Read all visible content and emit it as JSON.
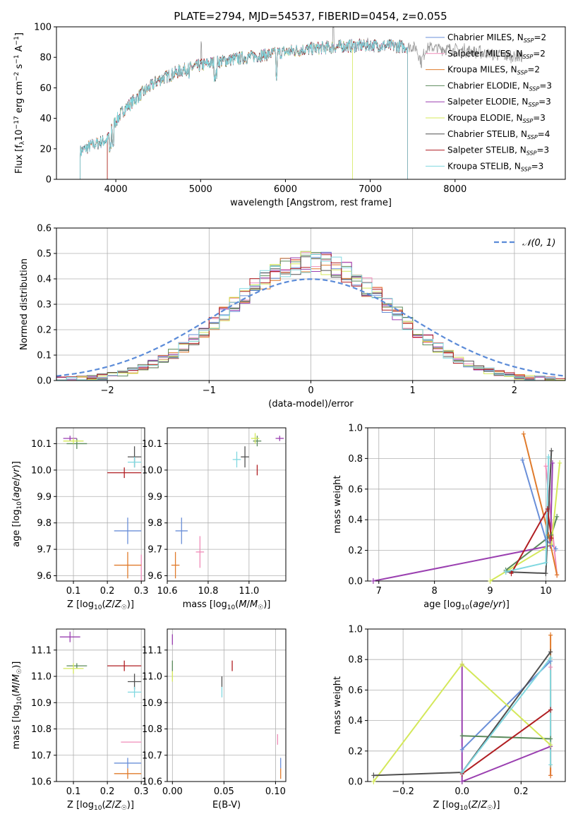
{
  "figure": {
    "title": "PLATE=2794, MJD=54537, FIBERID=0454, z=0.055"
  },
  "models": [
    {
      "name": "Chabrier MILES",
      "nssp": "2",
      "color": "#6a8fd8"
    },
    {
      "name": "Salpeter MILES",
      "nssp": "2",
      "color": "#f08cb8"
    },
    {
      "name": "Kroupa MILES",
      "nssp": "2",
      "color": "#e07b2c"
    },
    {
      "name": "Chabrier ELODIE",
      "nssp": "3",
      "color": "#5b8a5b"
    },
    {
      "name": "Salpeter ELODIE",
      "nssp": "3",
      "color": "#9a3fb0"
    },
    {
      "name": "Kroupa ELODIE",
      "nssp": "3",
      "color": "#d4e85a"
    },
    {
      "name": "Chabrier STELIB",
      "nssp": "4",
      "color": "#505050"
    },
    {
      "name": "Salpeter STELIB",
      "nssp": "3",
      "color": "#b01e22"
    },
    {
      "name": "Kroupa STELIB",
      "nssp": "3",
      "color": "#80d8e0"
    }
  ],
  "chart_data": [
    {
      "id": "spectrum",
      "type": "line",
      "title": "PLATE=2794, MJD=54537, FIBERID=0454, z=0.055",
      "xlabel": "wavelength [Angstrom, rest frame]",
      "ylabel": "Flux [f_λ 10^-17 erg cm^-2 s^-1 A^-1]",
      "xlim": [
        3300,
        9300
      ],
      "ylim": [
        0,
        100
      ],
      "xticks": [
        4000,
        5000,
        6000,
        7000,
        8000
      ],
      "yticks": [
        0,
        20,
        40,
        60,
        80,
        100
      ],
      "grid": false,
      "legend": "right",
      "data_range": [
        3580,
        8800
      ],
      "continuum": {
        "x": [
          3580,
          3700,
          3900,
          3950,
          4100,
          4300,
          4500,
          4800,
          5100,
          5400,
          5800,
          6200,
          6600,
          7000,
          7400,
          7800,
          8200,
          8500,
          8800
        ],
        "y": [
          18,
          22,
          26,
          34,
          46,
          56,
          65,
          72,
          76,
          79,
          82,
          85,
          87,
          88,
          87,
          86,
          84,
          82,
          80
        ]
      },
      "model_ranges": [
        [
          3580,
          7440
        ],
        [
          3580,
          7440
        ],
        [
          3580,
          7440
        ],
        [
          3900,
          7440
        ],
        [
          3900,
          7440
        ],
        [
          3900,
          6790
        ],
        [
          3580,
          7440
        ],
        [
          3900,
          7440
        ],
        [
          3580,
          7440
        ]
      ],
      "data_label": "Flux"
    },
    {
      "id": "residuals",
      "type": "histogram",
      "xlabel": "(data-model)/error",
      "ylabel": "Normed distribution",
      "xlim": [
        -2.5,
        2.5
      ],
      "ylim": [
        0,
        0.6
      ],
      "xticks": [
        -2,
        -1,
        0,
        1,
        2
      ],
      "yticks": [
        0.0,
        0.1,
        0.2,
        0.3,
        0.4,
        0.5,
        0.6
      ],
      "grid": true,
      "legend": "top-right",
      "reference_curve": "𝒩(0, 1)",
      "bin_width": 0.1,
      "peak": 0.47
    },
    {
      "id": "age-vs-z",
      "type": "errorbar",
      "xlabel": "Z [log10(Z/Z☉)]",
      "ylabel": "age [log10(age/yr)]",
      "xlim": [
        0.05,
        0.31
      ],
      "ylim": [
        9.58,
        10.16
      ],
      "xticks": [
        0.1,
        0.2,
        0.3
      ],
      "yticks": [
        9.6,
        9.7,
        9.8,
        9.9,
        10.0,
        10.1
      ],
      "grid": true,
      "points": [
        {
          "x": 0.26,
          "y": 9.77,
          "xerr": 0.04,
          "yerr": 0.05
        },
        {
          "x": 0.3,
          "y": 9.63,
          "xerr": 0.0,
          "yerr": 0.05
        },
        {
          "x": 0.26,
          "y": 9.64,
          "xerr": 0.04,
          "yerr": 0.05
        },
        {
          "x": 0.11,
          "y": 10.1,
          "xerr": 0.03,
          "yerr": 0.02
        },
        {
          "x": 0.09,
          "y": 10.12,
          "xerr": 0.02,
          "yerr": 0.01
        },
        {
          "x": 0.1,
          "y": 10.11,
          "xerr": 0.03,
          "yerr": 0.01
        },
        {
          "x": 0.28,
          "y": 10.05,
          "xerr": 0.02,
          "yerr": 0.04
        },
        {
          "x": 0.25,
          "y": 9.99,
          "xerr": 0.05,
          "yerr": 0.02
        },
        {
          "x": 0.28,
          "y": 10.03,
          "xerr": 0.02,
          "yerr": 0.02
        }
      ]
    },
    {
      "id": "age-vs-mass",
      "type": "errorbar",
      "xlabel": "mass [log10(M/M☉)]",
      "ylabel": "",
      "xlim": [
        10.6,
        11.18
      ],
      "ylim": [
        9.58,
        10.16
      ],
      "xticks": [
        10.6,
        10.8,
        11.0
      ],
      "yticks": [
        9.6,
        9.7,
        9.8,
        9.9,
        10.0,
        10.1
      ],
      "grid": true,
      "points": [
        {
          "x": 10.67,
          "y": 9.77,
          "xerr": 0.03,
          "yerr": 0.05
        },
        {
          "x": 10.76,
          "y": 9.69,
          "xerr": 0.02,
          "yerr": 0.06
        },
        {
          "x": 10.64,
          "y": 9.64,
          "xerr": 0.02,
          "yerr": 0.05
        },
        {
          "x": 11.04,
          "y": 10.11,
          "xerr": 0.02,
          "yerr": 0.02
        },
        {
          "x": 11.15,
          "y": 10.12,
          "xerr": 0.02,
          "yerr": 0.01
        },
        {
          "x": 11.03,
          "y": 10.12,
          "xerr": 0.02,
          "yerr": 0.02
        },
        {
          "x": 10.98,
          "y": 10.05,
          "xerr": 0.02,
          "yerr": 0.04
        },
        {
          "x": 11.04,
          "y": 10.0,
          "xerr": 0.0,
          "yerr": 0.02
        },
        {
          "x": 10.94,
          "y": 10.04,
          "xerr": 0.02,
          "yerr": 0.03
        }
      ]
    },
    {
      "id": "weight-vs-age",
      "type": "line",
      "xlabel": "age [log10(age/yr)]",
      "ylabel": "mass weight",
      "xlim": [
        6.8,
        10.35
      ],
      "ylim": [
        0.0,
        1.0
      ],
      "xticks": [
        7,
        8,
        9,
        10
      ],
      "yticks": [
        0.0,
        0.2,
        0.4,
        0.6,
        0.8,
        1.0
      ],
      "grid": true,
      "series": [
        {
          "x": [
            9.58,
            10.0,
            10.18
          ],
          "y": [
            0.79,
            0.27,
            0.21
          ]
        },
        {
          "x": [
            10.0,
            10.2
          ],
          "y": [
            0.75,
            0.04
          ]
        },
        {
          "x": [
            9.6,
            10.05,
            10.2
          ],
          "y": [
            0.96,
            0.3,
            0.04
          ]
        },
        {
          "x": [
            9.28,
            10.1,
            10.2
          ],
          "y": [
            0.07,
            0.3,
            0.42
          ]
        },
        {
          "x": [
            6.9,
            10.08,
            10.12
          ],
          "y": [
            0.0,
            0.23,
            0.77
          ]
        },
        {
          "x": [
            9.0,
            10.1,
            10.25
          ],
          "y": [
            0.0,
            0.24,
            0.77
          ]
        },
        {
          "x": [
            9.28,
            10.0,
            10.1
          ],
          "y": [
            0.06,
            0.05,
            0.85
          ]
        },
        {
          "x": [
            9.38,
            10.03,
            10.1
          ],
          "y": [
            0.05,
            0.47,
            0.28
          ]
        },
        {
          "x": [
            9.28,
            10.0,
            10.05
          ],
          "y": [
            0.06,
            0.12,
            0.81
          ]
        }
      ]
    },
    {
      "id": "mass-vs-z",
      "type": "errorbar",
      "xlabel": "Z [log10(Z/Z☉)]",
      "ylabel": "mass [log10(M/M☉)]",
      "xlim": [
        0.05,
        0.31
      ],
      "ylim": [
        10.6,
        11.18
      ],
      "xticks": [
        0.1,
        0.2,
        0.3
      ],
      "yticks": [
        10.6,
        10.7,
        10.8,
        10.9,
        11.0,
        11.1
      ],
      "grid": true,
      "points": [
        {
          "x": 0.26,
          "y": 10.67,
          "xerr": 0.04,
          "yerr": 0.02
        },
        {
          "x": 0.27,
          "y": 10.75,
          "xerr": 0.03,
          "yerr": 0.0
        },
        {
          "x": 0.26,
          "y": 10.63,
          "xerr": 0.04,
          "yerr": 0.02
        },
        {
          "x": 0.11,
          "y": 11.04,
          "xerr": 0.03,
          "yerr": 0.01
        },
        {
          "x": 0.09,
          "y": 11.15,
          "xerr": 0.03,
          "yerr": 0.02
        },
        {
          "x": 0.1,
          "y": 11.03,
          "xerr": 0.03,
          "yerr": 0.02
        },
        {
          "x": 0.28,
          "y": 10.98,
          "xerr": 0.02,
          "yerr": 0.03
        },
        {
          "x": 0.25,
          "y": 11.04,
          "xerr": 0.05,
          "yerr": 0.02
        },
        {
          "x": 0.28,
          "y": 10.94,
          "xerr": 0.02,
          "yerr": 0.02
        }
      ]
    },
    {
      "id": "mass-vs-ebv",
      "type": "errorbar",
      "xlabel": "E(B-V)",
      "ylabel": "",
      "xlim": [
        -0.005,
        0.11
      ],
      "ylim": [
        10.6,
        11.18
      ],
      "xticks": [
        0.0,
        0.05,
        0.1
      ],
      "yticks": [
        10.6,
        10.7,
        10.8,
        10.9,
        11.0,
        11.1
      ],
      "grid": true,
      "points": [
        {
          "x": 0.105,
          "y": 10.67,
          "xerr": 0.0,
          "yerr": 0.02
        },
        {
          "x": 0.102,
          "y": 10.76,
          "xerr": 0.0,
          "yerr": 0.02
        },
        {
          "x": 0.105,
          "y": 10.63,
          "xerr": 0.0,
          "yerr": 0.02
        },
        {
          "x": 0.0,
          "y": 11.04,
          "xerr": 0.0,
          "yerr": 0.02
        },
        {
          "x": 0.0,
          "y": 11.14,
          "xerr": 0.0,
          "yerr": 0.02
        },
        {
          "x": 0.0,
          "y": 11.0,
          "xerr": 0.0,
          "yerr": 0.02
        },
        {
          "x": 0.048,
          "y": 10.98,
          "xerr": 0.0,
          "yerr": 0.02
        },
        {
          "x": 0.058,
          "y": 11.04,
          "xerr": 0.0,
          "yerr": 0.02
        },
        {
          "x": 0.048,
          "y": 10.94,
          "xerr": 0.0,
          "yerr": 0.02
        }
      ]
    },
    {
      "id": "weight-vs-z",
      "type": "line",
      "xlabel": "Z [log10(Z/Z☉)]",
      "ylabel": "mass weight",
      "xlim": [
        -0.32,
        0.35
      ],
      "ylim": [
        0.0,
        1.0
      ],
      "xticks": [
        -0.2,
        0.0,
        0.2
      ],
      "yticks": [
        0.0,
        0.2,
        0.4,
        0.6,
        0.8,
        1.0
      ],
      "grid": true,
      "series": [
        {
          "x": [
            0.0,
            0.3
          ],
          "y": [
            0.21,
            0.79
          ]
        },
        {
          "x": [
            0.3,
            0.3
          ],
          "y": [
            0.75,
            0.04
          ]
        },
        {
          "x": [
            0.3,
            0.3
          ],
          "y": [
            0.96,
            0.04
          ]
        },
        {
          "x": [
            0.0,
            0.3
          ],
          "y": [
            0.3,
            0.28
          ]
        },
        {
          "x": [
            0.0,
            0.0,
            0.3
          ],
          "y": [
            0.77,
            0.0,
            0.23
          ]
        },
        {
          "x": [
            -0.3,
            0.0,
            0.3
          ],
          "y": [
            0.0,
            0.77,
            0.24
          ]
        },
        {
          "x": [
            -0.3,
            0.0,
            0.3
          ],
          "y": [
            0.04,
            0.06,
            0.85
          ]
        },
        {
          "x": [
            0.0,
            0.3
          ],
          "y": [
            0.05,
            0.47
          ]
        },
        {
          "x": [
            0.0,
            0.3,
            0.3
          ],
          "y": [
            0.06,
            0.81,
            0.11
          ]
        }
      ]
    }
  ]
}
